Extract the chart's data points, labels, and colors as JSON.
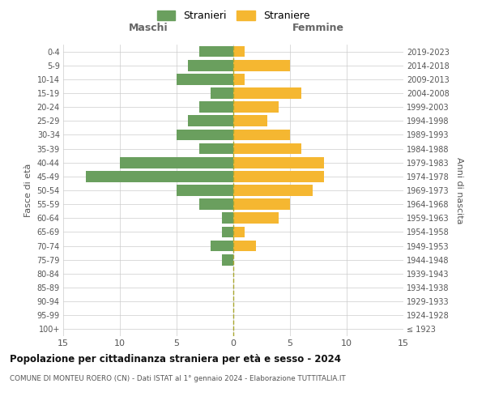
{
  "age_groups": [
    "100+",
    "95-99",
    "90-94",
    "85-89",
    "80-84",
    "75-79",
    "70-74",
    "65-69",
    "60-64",
    "55-59",
    "50-54",
    "45-49",
    "40-44",
    "35-39",
    "30-34",
    "25-29",
    "20-24",
    "15-19",
    "10-14",
    "5-9",
    "0-4"
  ],
  "birth_years": [
    "≤ 1923",
    "1924-1928",
    "1929-1933",
    "1934-1938",
    "1939-1943",
    "1944-1948",
    "1949-1953",
    "1954-1958",
    "1959-1963",
    "1964-1968",
    "1969-1973",
    "1974-1978",
    "1979-1983",
    "1984-1988",
    "1989-1993",
    "1994-1998",
    "1999-2003",
    "2004-2008",
    "2009-2013",
    "2014-2018",
    "2019-2023"
  ],
  "maschi": [
    0,
    0,
    0,
    0,
    0,
    1,
    2,
    1,
    1,
    3,
    5,
    13,
    10,
    3,
    5,
    4,
    3,
    2,
    5,
    4,
    3
  ],
  "femmine": [
    0,
    0,
    0,
    0,
    0,
    0,
    2,
    1,
    4,
    5,
    7,
    8,
    8,
    6,
    5,
    3,
    4,
    6,
    1,
    5,
    1
  ],
  "color_maschi": "#6a9f5e",
  "color_femmine": "#f5b731",
  "title": "Popolazione per cittadinanza straniera per età e sesso - 2024",
  "subtitle": "COMUNE DI MONTEU ROERO (CN) - Dati ISTAT al 1° gennaio 2024 - Elaborazione TUTTITALIA.IT",
  "xlabel_left": "Maschi",
  "xlabel_right": "Femmine",
  "ylabel_left": "Fasce di età",
  "ylabel_right": "Anni di nascita",
  "legend_maschi": "Stranieri",
  "legend_femmine": "Straniere",
  "xlim": 15,
  "background_color": "#ffffff",
  "grid_color": "#cccccc"
}
